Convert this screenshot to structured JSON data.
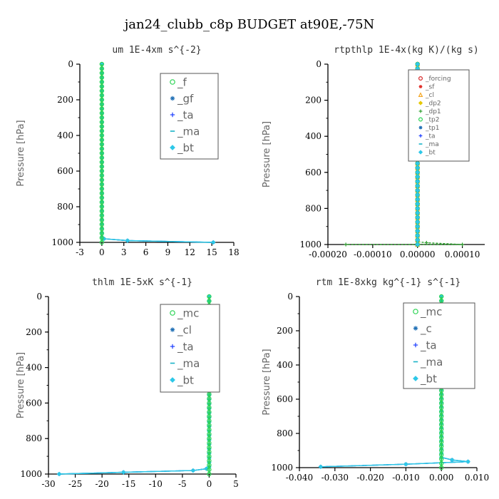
{
  "figure_title": "jan24_clubb_c8p  BUDGET at90E,-75N",
  "chart_data": [
    {
      "type": "line",
      "title": "um  1E-4xm s^{-2}",
      "ylabel": "Pressure [hPa]",
      "xlim": [
        -3,
        18
      ],
      "ylim": [
        1000,
        0
      ],
      "xticks": [
        -3,
        0,
        3,
        6,
        9,
        12,
        15,
        18
      ],
      "xtick_labels": [
        "-3",
        "0",
        "3",
        "6",
        "9",
        "12",
        "15",
        "18"
      ],
      "yticks": [
        0,
        200,
        400,
        600,
        800,
        1000
      ],
      "ytick_labels": [
        "0",
        "200",
        "400",
        "600",
        "800",
        "1000"
      ],
      "legend": "top-right",
      "series": [
        {
          "name": "_gf",
          "color": "#1f6fb5",
          "marker": "asterisk",
          "x": [
            0,
            0,
            0.3,
            3.5,
            15.2
          ],
          "y": [
            0,
            970,
            980,
            990,
            1000
          ]
        },
        {
          "name": "_ta",
          "color": "#1a3cff",
          "marker": "plus",
          "x": [
            0,
            0,
            0.3,
            3.5,
            15.2
          ],
          "y": [
            0,
            970,
            980,
            990,
            1000
          ]
        },
        {
          "name": "_ma",
          "color": "#19b4c8",
          "marker": "dash",
          "x": [
            0,
            0,
            0.3,
            3.5,
            15.2
          ],
          "y": [
            0,
            970,
            980,
            990,
            1000
          ]
        },
        {
          "name": "_bt",
          "color": "#2ec8e8",
          "marker": "diamond",
          "x": [
            0,
            0,
            0.3,
            3.5,
            15.2
          ],
          "y": [
            0,
            970,
            980,
            990,
            1000
          ]
        },
        {
          "name": "_f",
          "color": "#2bd454",
          "marker": "circle",
          "x": [
            0,
            0
          ],
          "y": [
            0,
            1000
          ]
        }
      ]
    },
    {
      "type": "line",
      "title": "rtpthlp  1E-4x(kg K)/(kg s)",
      "ylabel": "Pressure [hPa]",
      "xlim": [
        -0.0002,
        0.00015
      ],
      "ylim": [
        1000,
        0
      ],
      "xticks": [
        -0.0002,
        -0.0001,
        0,
        0.0001
      ],
      "xtick_labels": [
        "-0.00020",
        "-0.00010",
        "0.00000",
        "0.00010"
      ],
      "yticks": [
        0,
        200,
        400,
        600,
        800,
        1000
      ],
      "ytick_labels": [
        "0",
        "200",
        "400",
        "600",
        "800",
        "1000"
      ],
      "legend": "top-right",
      "series": [
        {
          "name": "_dp1",
          "color": "#2e9e2e",
          "marker": "plus",
          "x": [
            0,
            0,
            2e-05,
            0.0001,
            -0.00016
          ],
          "y": [
            0,
            985,
            990,
            1000,
            1000
          ]
        },
        {
          "name": "_forcing",
          "color": "#d62728",
          "marker": "circle",
          "x": [
            0,
            0
          ],
          "y": [
            0,
            1000
          ]
        },
        {
          "name": "_sf",
          "color": "#e0302a",
          "marker": "asterisk",
          "x": [
            0,
            0
          ],
          "y": [
            0,
            1000
          ]
        },
        {
          "name": "_cl",
          "color": "#f5a623",
          "marker": "triangle",
          "x": [
            0,
            0
          ],
          "y": [
            0,
            1000
          ]
        },
        {
          "name": "_dp2",
          "color": "#e6c800",
          "marker": "diamond",
          "x": [
            0,
            0
          ],
          "y": [
            0,
            1000
          ]
        },
        {
          "name": "_tp2",
          "color": "#2bd454",
          "marker": "circle",
          "x": [
            0,
            0
          ],
          "y": [
            0,
            1000
          ]
        },
        {
          "name": "_tp1",
          "color": "#1f6fb5",
          "marker": "asterisk",
          "x": [
            0,
            0
          ],
          "y": [
            0,
            1000
          ]
        },
        {
          "name": "_ta",
          "color": "#1a3cff",
          "marker": "plus",
          "x": [
            0,
            0
          ],
          "y": [
            0,
            1000
          ]
        },
        {
          "name": "_ma",
          "color": "#19b4c8",
          "marker": "dash",
          "x": [
            0,
            0
          ],
          "y": [
            0,
            1000
          ]
        },
        {
          "name": "_bt",
          "color": "#2ec8e8",
          "marker": "diamond",
          "x": [
            0,
            0
          ],
          "y": [
            0,
            1000
          ]
        }
      ]
    },
    {
      "type": "line",
      "title": "thlm  1E-5xK s^{-1}",
      "ylabel": "Pressure [hPa]",
      "xlim": [
        -30,
        5
      ],
      "ylim": [
        1000,
        0
      ],
      "xticks": [
        -30,
        -25,
        -20,
        -15,
        -10,
        -5,
        0,
        5
      ],
      "xtick_labels": [
        "-30",
        "-25",
        "-20",
        "-15",
        "-10",
        "-5",
        "0",
        "5"
      ],
      "yticks": [
        0,
        200,
        400,
        600,
        800,
        1000
      ],
      "ytick_labels": [
        "0",
        "200",
        "400",
        "600",
        "800",
        "1000"
      ],
      "legend": "top-right",
      "series": [
        {
          "name": "_cl",
          "color": "#1f6fb5",
          "marker": "asterisk",
          "x": [
            0,
            0,
            -0.5,
            -3,
            -16,
            -28
          ],
          "y": [
            0,
            960,
            970,
            980,
            990,
            1000
          ]
        },
        {
          "name": "_ta",
          "color": "#1a3cff",
          "marker": "plus",
          "x": [
            0,
            0,
            -0.5,
            -3,
            -16,
            -28
          ],
          "y": [
            0,
            960,
            970,
            980,
            990,
            1000
          ]
        },
        {
          "name": "_ma",
          "color": "#19b4c8",
          "marker": "dash",
          "x": [
            0,
            0,
            -0.5,
            -3,
            -16,
            -28
          ],
          "y": [
            0,
            960,
            970,
            980,
            990,
            1000
          ]
        },
        {
          "name": "_bt",
          "color": "#2ec8e8",
          "marker": "diamond",
          "x": [
            0,
            0,
            -0.5,
            -3,
            -16,
            -28
          ],
          "y": [
            0,
            960,
            970,
            980,
            990,
            1000
          ]
        },
        {
          "name": "_mc",
          "color": "#2bd454",
          "marker": "circle",
          "x": [
            0,
            0
          ],
          "y": [
            0,
            1000
          ]
        }
      ]
    },
    {
      "type": "line",
      "title": "rtm  1E-8xkg kg^{-1} s^{-1}",
      "ylabel": "Pressure [hPa]",
      "xlim": [
        -0.04,
        0.01
      ],
      "ylim": [
        1000,
        0
      ],
      "xticks": [
        -0.04,
        -0.03,
        -0.02,
        -0.01,
        0,
        0.01
      ],
      "xtick_labels": [
        "-0.040",
        "-0.030",
        "-0.020",
        "-0.010",
        "0.000",
        "0.010"
      ],
      "yticks": [
        0,
        200,
        400,
        600,
        800,
        1000
      ],
      "ytick_labels": [
        "0",
        "200",
        "400",
        "600",
        "800",
        "1000"
      ],
      "legend": "top-right",
      "series": [
        {
          "name": "_c",
          "color": "#1f6fb5",
          "marker": "asterisk",
          "x": [
            0,
            0,
            0.003,
            0.0075,
            -0.01,
            -0.034
          ],
          "y": [
            0,
            940,
            955,
            965,
            980,
            995
          ]
        },
        {
          "name": "_ta",
          "color": "#1a3cff",
          "marker": "plus",
          "x": [
            0,
            0,
            0.003,
            0.0075,
            -0.01,
            -0.034
          ],
          "y": [
            0,
            940,
            955,
            965,
            980,
            995
          ]
        },
        {
          "name": "_ma",
          "color": "#19b4c8",
          "marker": "dash",
          "x": [
            0,
            0,
            0.003,
            0.0075,
            -0.01,
            -0.034
          ],
          "y": [
            0,
            940,
            955,
            965,
            980,
            995
          ]
        },
        {
          "name": "_bt",
          "color": "#2ec8e8",
          "marker": "diamond",
          "x": [
            0,
            0,
            0.003,
            0.0075,
            -0.01,
            -0.034
          ],
          "y": [
            0,
            940,
            955,
            965,
            980,
            995
          ]
        },
        {
          "name": "_mc",
          "color": "#2bd454",
          "marker": "circle",
          "x": [
            0,
            0
          ],
          "y": [
            0,
            1000
          ]
        }
      ]
    }
  ]
}
